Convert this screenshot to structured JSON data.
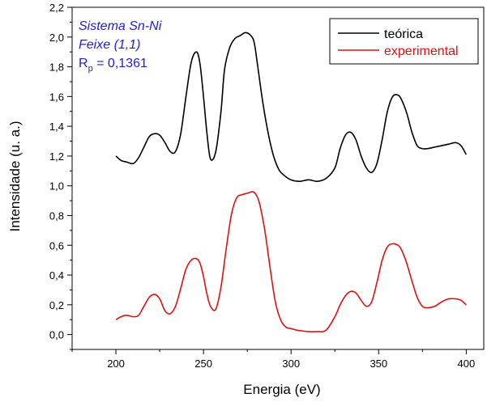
{
  "chart_data": {
    "type": "line",
    "xlabel": "Energia (eV)",
    "ylabel": "Intensidade (u. a.)",
    "xlim": [
      175,
      410
    ],
    "ylim": [
      -0.1,
      2.2
    ],
    "xticks": [
      200,
      250,
      300,
      350,
      400
    ],
    "xtick_labels": [
      "200",
      "250",
      "300",
      "350",
      "400"
    ],
    "yticks": [
      0.0,
      0.2,
      0.4,
      0.6,
      0.8,
      1.0,
      1.2,
      1.4,
      1.6,
      1.8,
      2.0,
      2.2
    ],
    "ytick_labels": [
      "0,0",
      "0,2",
      "0,4",
      "0,6",
      "0,8",
      "1,0",
      "1,2",
      "1,4",
      "1,6",
      "1,8",
      "2,0",
      "2,2"
    ],
    "grid": false,
    "legend_position": "top-right",
    "annotations": {
      "line1": "Sistema Sn-Ni",
      "line2": "Feixe (1,1)",
      "rp_main": "R",
      "rp_sub": "p",
      "rp_value": " = 0,1361"
    },
    "series": [
      {
        "name": "teórica",
        "color": "#000000",
        "x": [
          200,
          203,
          206,
          210,
          213,
          216,
          219,
          222,
          225,
          228,
          231,
          234,
          237,
          240,
          243,
          246,
          248,
          250,
          252,
          254,
          257,
          260,
          262,
          265,
          268,
          271,
          274,
          277,
          279,
          281,
          284,
          287,
          290,
          293,
          296,
          300,
          305,
          310,
          315,
          320,
          325,
          328,
          331,
          334,
          337,
          340,
          343,
          346,
          349,
          352,
          355,
          358,
          361,
          363,
          366,
          369,
          372,
          375,
          378,
          382,
          386,
          390,
          394,
          397,
          400
        ],
        "y": [
          1.2,
          1.17,
          1.16,
          1.15,
          1.19,
          1.26,
          1.33,
          1.35,
          1.34,
          1.29,
          1.23,
          1.23,
          1.35,
          1.6,
          1.83,
          1.9,
          1.82,
          1.6,
          1.35,
          1.18,
          1.23,
          1.5,
          1.78,
          1.93,
          1.99,
          2.01,
          2.03,
          2.01,
          1.96,
          1.8,
          1.55,
          1.35,
          1.2,
          1.11,
          1.07,
          1.04,
          1.03,
          1.04,
          1.03,
          1.05,
          1.12,
          1.25,
          1.34,
          1.36,
          1.31,
          1.2,
          1.12,
          1.09,
          1.15,
          1.31,
          1.5,
          1.6,
          1.61,
          1.58,
          1.49,
          1.36,
          1.27,
          1.25,
          1.25,
          1.26,
          1.27,
          1.28,
          1.29,
          1.27,
          1.21
        ]
      },
      {
        "name": "experimental",
        "color": "#e01010",
        "x": [
          200,
          203,
          206,
          210,
          213,
          216,
          219,
          222,
          225,
          228,
          231,
          234,
          237,
          240,
          243,
          246,
          248,
          250,
          252,
          254,
          257,
          260,
          263,
          266,
          269,
          272,
          275,
          278,
          280,
          282,
          285,
          288,
          291,
          294,
          297,
          300,
          303,
          306,
          310,
          315,
          320,
          325,
          328,
          331,
          334,
          337,
          340,
          343,
          346,
          349,
          352,
          355,
          358,
          361,
          363,
          366,
          369,
          372,
          375,
          378,
          382,
          386,
          390,
          394,
          397,
          400
        ],
        "y": [
          0.1,
          0.12,
          0.13,
          0.12,
          0.13,
          0.19,
          0.25,
          0.27,
          0.24,
          0.16,
          0.14,
          0.19,
          0.31,
          0.44,
          0.5,
          0.51,
          0.48,
          0.39,
          0.27,
          0.19,
          0.17,
          0.32,
          0.58,
          0.81,
          0.92,
          0.94,
          0.95,
          0.96,
          0.94,
          0.88,
          0.7,
          0.45,
          0.22,
          0.1,
          0.05,
          0.04,
          0.03,
          0.025,
          0.02,
          0.02,
          0.03,
          0.12,
          0.2,
          0.26,
          0.29,
          0.28,
          0.23,
          0.19,
          0.22,
          0.35,
          0.5,
          0.59,
          0.61,
          0.6,
          0.57,
          0.48,
          0.36,
          0.25,
          0.19,
          0.18,
          0.19,
          0.22,
          0.24,
          0.24,
          0.23,
          0.2
        ]
      }
    ]
  }
}
